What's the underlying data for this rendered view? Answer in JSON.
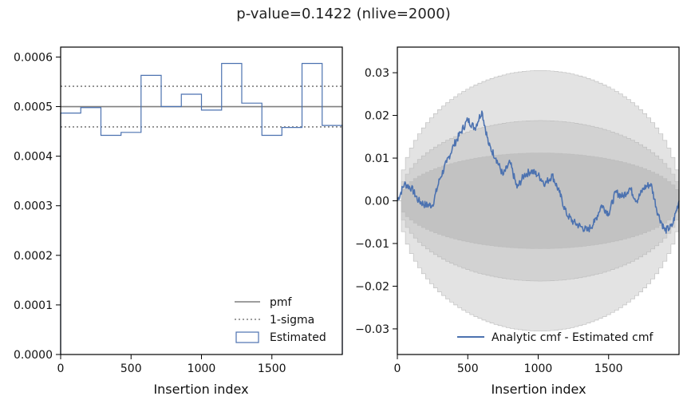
{
  "figure": {
    "title": "p-value=0.1422 (nlive=2000)"
  },
  "colors": {
    "blue": "#4C72B0",
    "gray": "#7f7f7f",
    "band_light": "#e3e3e3",
    "band_mid": "#d2d2d2",
    "band_dark": "#c2c2c2"
  },
  "chart_data": [
    {
      "type": "histogram",
      "xlabel": "Insertion index",
      "ylabel": "",
      "xlim": [
        0,
        2000
      ],
      "ylim": [
        0,
        0.00062
      ],
      "xticks": [
        0,
        500,
        1000,
        1500
      ],
      "yticks": [
        0.0,
        0.0001,
        0.0002,
        0.0003,
        0.0004,
        0.0005,
        0.0006
      ],
      "ytick_labels": [
        "0.0000",
        "0.0001",
        "0.0002",
        "0.0003",
        "0.0004",
        "0.0005",
        "0.0006"
      ],
      "bin_edges": [
        0,
        143,
        286,
        429,
        571,
        714,
        857,
        1000,
        1143,
        1286,
        1429,
        1571,
        1714,
        1857,
        2000
      ],
      "estimated": [
        0.000487,
        0.000498,
        0.000442,
        0.000448,
        0.000563,
        0.0005,
        0.000525,
        0.000493,
        0.000587,
        0.000507,
        0.000442,
        0.000458,
        0.000587,
        0.000462
      ],
      "pmf": 0.0005,
      "one_sigma": [
        0.000459,
        0.000541
      ],
      "legend": {
        "position": "lower right",
        "entries": [
          "pmf",
          "1-sigma",
          "Estimated"
        ]
      }
    },
    {
      "type": "line",
      "xlabel": "Insertion index",
      "ylabel": "",
      "xlim": [
        0,
        2000
      ],
      "ylim": [
        -0.036,
        0.036
      ],
      "xticks": [
        0,
        500,
        1000,
        1500
      ],
      "yticks": [
        -0.03,
        -0.02,
        -0.01,
        0.0,
        0.01,
        0.02,
        0.03
      ],
      "ytick_labels": [
        "−0.03",
        "−0.02",
        "−0.01",
        "0.00",
        "0.01",
        "0.02",
        "0.03"
      ],
      "confidence_bands": [
        {
          "level": 3,
          "half_width_at_center": 0.0305
        },
        {
          "level": 2,
          "half_width_at_center": 0.0188
        },
        {
          "level": 1,
          "half_width_at_center": 0.0112
        }
      ],
      "series": [
        {
          "name": "Analytic cmf - Estimated cmf",
          "x": [
            0,
            50,
            100,
            150,
            200,
            250,
            300,
            350,
            400,
            450,
            500,
            550,
            600,
            650,
            700,
            750,
            800,
            850,
            900,
            950,
            1000,
            1050,
            1100,
            1150,
            1200,
            1250,
            1300,
            1350,
            1400,
            1450,
            1500,
            1550,
            1600,
            1650,
            1700,
            1750,
            1800,
            1850,
            1900,
            1950,
            2000
          ],
          "y": [
            0.0,
            0.004,
            0.003,
            0.0,
            -0.001,
            -0.001,
            0.005,
            0.009,
            0.013,
            0.016,
            0.019,
            0.017,
            0.021,
            0.013,
            0.01,
            0.006,
            0.009,
            0.003,
            0.006,
            0.007,
            0.006,
            0.004,
            0.006,
            0.002,
            -0.003,
            -0.005,
            -0.006,
            -0.007,
            -0.005,
            -0.001,
            -0.003,
            0.002,
            0.001,
            0.003,
            0.0,
            0.003,
            0.004,
            -0.003,
            -0.007,
            -0.006,
            0.0
          ]
        }
      ],
      "legend": {
        "position": "lower right",
        "entries": [
          "Analytic cmf - Estimated cmf"
        ]
      }
    }
  ]
}
